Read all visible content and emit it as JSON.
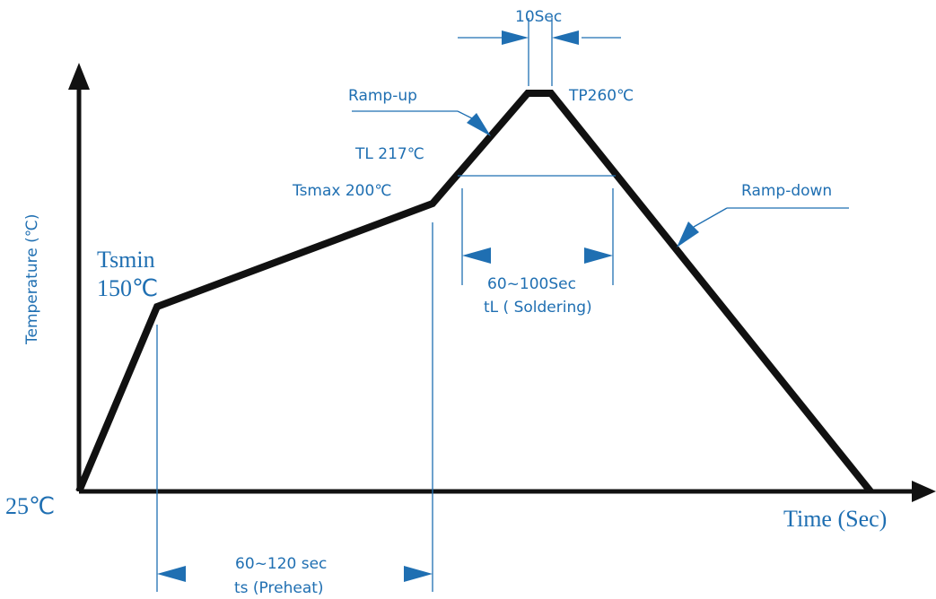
{
  "colors": {
    "profile": "#111111",
    "annotation": "#1f6fb2",
    "axis": "#111111"
  },
  "labels": {
    "y_axis": "Temperature (℃)",
    "x_axis": "Time (Sec)",
    "origin": "25℃",
    "tsmin_name": "Tsmin",
    "tsmin_temp": "150℃",
    "tsmax": "Tsmax 200℃",
    "tl": "TL 217℃",
    "tp": "TP260℃",
    "ramp_up": "Ramp-up",
    "ramp_down": "Ramp-down",
    "peak_time": "10Sec",
    "soldering_time": "60~100Sec",
    "soldering_name": "tL ( Soldering)",
    "preheat_time": "60~120 sec",
    "preheat_name": "ts (Preheat)"
  },
  "profile": {
    "temperatures_c": [
      25,
      150,
      200,
      217,
      260
    ],
    "preheat_duration_sec": "60~120",
    "soldering_duration_sec": "60~100",
    "peak_duration_sec": 10
  }
}
